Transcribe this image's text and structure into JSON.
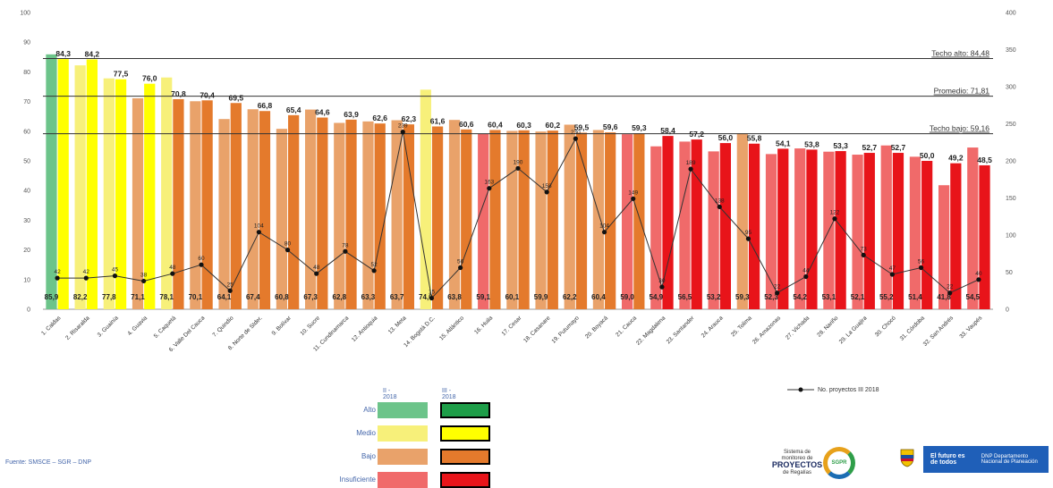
{
  "chart_data": {
    "type": "bar",
    "categories": [
      "1. Caldas",
      "2. Risaralda",
      "3. Guainía",
      "4. Guavia",
      "5. Caquetá",
      "6. Valle Del Cauca",
      "7. Quindío",
      "8. Norte de Stder.",
      "9. Bolívar",
      "10. Sucre",
      "11. Cundinamarca",
      "12. Antioquia",
      "13. Meta",
      "14. Bogotá D.C.",
      "15. Atlántico",
      "16. Huila",
      "17. Cesar",
      "18. Casanare",
      "19. Putumayo",
      "20. Boyacá",
      "21. Cauca",
      "22. Magdalena",
      "23. Santander",
      "24. Arauca",
      "25. Tolima",
      "26. Amazonas",
      "27. Vichada",
      "28. Nariño",
      "29. La Guajira",
      "30. Chocó",
      "31. Córdoba",
      "32. San Andrés",
      "33. Vaupés"
    ],
    "series": [
      {
        "name": "II - 2018",
        "values": [
          85.9,
          82.2,
          77.8,
          71.1,
          78.1,
          70.1,
          64.1,
          67.4,
          60.8,
          67.3,
          62.8,
          63.3,
          63.7,
          74.0,
          63.8,
          59.1,
          60.1,
          59.9,
          62.2,
          60.4,
          59.0,
          54.9,
          56.5,
          53.2,
          59.3,
          52.3,
          54.2,
          53.1,
          52.1,
          55.2,
          51.4,
          41.8,
          54.5
        ]
      },
      {
        "name": "III - 2018",
        "values": [
          84.3,
          84.2,
          77.5,
          76.0,
          70.8,
          70.4,
          69.5,
          66.8,
          65.4,
          64.6,
          63.9,
          62.6,
          62.3,
          61.6,
          60.6,
          60.4,
          60.3,
          60.2,
          59.5,
          59.6,
          59.3,
          58.4,
          57.2,
          56.0,
          55.8,
          54.1,
          53.8,
          53.3,
          52.7,
          52.7,
          50.0,
          49.2,
          48.5
        ]
      },
      {
        "name": "No. proyectos III 2018",
        "values": [
          42,
          42,
          45,
          38,
          48,
          60,
          25,
          104,
          80,
          48,
          78,
          52,
          239,
          15,
          56,
          163,
          190,
          158,
          230,
          104,
          149,
          30,
          189,
          138,
          95,
          22,
          44,
          122,
          73,
          47,
          56,
          22,
          40
        ]
      }
    ],
    "ylim": [
      0,
      100
    ],
    "y2lim": [
      0,
      400
    ],
    "y_ticks": [
      "0",
      "10",
      "20",
      "30",
      "40",
      "50",
      "60",
      "70",
      "80",
      "90",
      "100"
    ],
    "y2_ticks": [
      "0",
      "50",
      "100",
      "150",
      "200",
      "250",
      "300",
      "350",
      "400"
    ],
    "reference_lines": [
      {
        "label": "Techo alto: 84,48",
        "value": 84.48
      },
      {
        "label": "Promedio: 71,81",
        "value": 71.81
      },
      {
        "label": "Techo bajo: 59,16",
        "value": 59.16
      }
    ],
    "prev_colors": {
      "alto": "#6cc48a",
      "medio": "#f7f07a",
      "bajo": "#e9a26a",
      "insuficiente": "#f06a6a"
    },
    "curr_colors": {
      "alto": "#1e9e49",
      "medio": "#ffff00",
      "bajo": "#e47a2c",
      "insuficiente": "#e8141a"
    },
    "line_color": "#333333"
  },
  "legend": {
    "col_prev": "II - 2018",
    "col_curr": "III - 2018",
    "rows": [
      "Alto",
      "Medio",
      "Bajo",
      "Insuficiente"
    ],
    "line_label": "No. proyectos III 2018"
  },
  "source": "Fuente: SMSCE – SGR – DNP",
  "logo": {
    "line1": "Sistema de monitoreo de",
    "title": "PROYECTOS",
    "line2": "de Regalías",
    "mark": "SGPR"
  },
  "banner": {
    "left": "El futuro es de todos",
    "right": "DNP Departamento Nacional de Planeación"
  }
}
